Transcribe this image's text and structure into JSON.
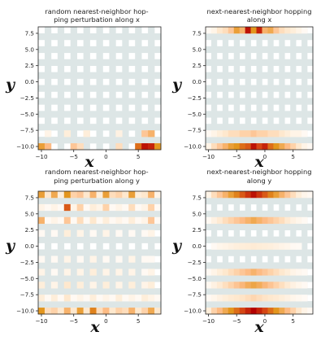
{
  "chart_data": [
    {
      "type": "heatmap",
      "title_lines": [
        "random nearest-neighbor hop-",
        "ping perturbation along x"
      ],
      "xlabel": "x",
      "ylabel": "y",
      "xlim": [
        -10.5,
        8.5
      ],
      "ylim": [
        -10.5,
        8.5
      ],
      "xticks": [
        "−10",
        "−5",
        "0",
        "5"
      ],
      "yticks": [
        "7.5",
        "5.0",
        "2.5",
        "0.0",
        "−2.5",
        "−5.0",
        "−7.5",
        "−10.0"
      ],
      "highlights": [
        {
          "x": -10,
          "y": -10,
          "v": 0.55
        },
        {
          "x": -9,
          "y": -10,
          "v": 0.4
        },
        {
          "x": -5,
          "y": -10,
          "v": 0.35
        },
        {
          "x": 5,
          "y": -10,
          "v": 0.7
        },
        {
          "x": 6,
          "y": -10,
          "v": 0.95
        },
        {
          "x": 7,
          "y": -10,
          "v": 0.9
        },
        {
          "x": 8,
          "y": -10,
          "v": 0.6
        },
        {
          "x": -4,
          "y": -10,
          "v": 0.25
        },
        {
          "x": 2,
          "y": -10,
          "v": 0.25
        },
        {
          "x": 6,
          "y": -8,
          "v": 0.35
        },
        {
          "x": 7,
          "y": -8,
          "v": 0.45
        },
        {
          "x": -6,
          "y": -8,
          "v": 0.15
        },
        {
          "x": -3,
          "y": -8,
          "v": 0.15
        },
        {
          "x": 2,
          "y": -8,
          "v": 0.12
        },
        {
          "x": -9,
          "y": -8,
          "v": 0.1
        }
      ]
    },
    {
      "type": "heatmap",
      "title_lines": [
        "next-nearest-neighbor hopping",
        "along x"
      ],
      "xlabel": "x",
      "ylabel": "y",
      "xlim": [
        -10.5,
        8.5
      ],
      "ylim": [
        -10.5,
        8.5
      ],
      "xticks": [
        "−10",
        "−5",
        "0",
        "5"
      ],
      "yticks": [
        "7.5",
        "5.0",
        "2.5",
        "0.0",
        "−2.5",
        "−5.0",
        "−7.5",
        "−10.0"
      ],
      "rows": [
        {
          "y": 8,
          "values": [
            0.05,
            0.1,
            0.2,
            0.25,
            0.35,
            0.55,
            0.45,
            0.95,
            0.6,
            0.9,
            0.45,
            0.5,
            0.35,
            0.25,
            0.2,
            0.15,
            0.1,
            0.05,
            0.03
          ]
        },
        {
          "y": -8,
          "values": [
            0.05,
            0.1,
            0.15,
            0.2,
            0.25,
            0.25,
            0.3,
            0.3,
            0.35,
            0.3,
            0.3,
            0.25,
            0.25,
            0.2,
            0.15,
            0.1,
            0.1,
            0.05,
            0.03
          ]
        },
        {
          "y": -10,
          "values": [
            0.1,
            0.25,
            0.35,
            0.45,
            0.55,
            0.6,
            0.7,
            0.75,
            0.95,
            0.8,
            0.9,
            0.7,
            0.6,
            0.5,
            0.4,
            0.3,
            0.2,
            0.1,
            0.05
          ]
        }
      ]
    },
    {
      "type": "heatmap",
      "title_lines": [
        "random nearest-neighbor hop-",
        "ping perturbation along y"
      ],
      "xlabel": "x",
      "ylabel": "y",
      "xlim": [
        -10.5,
        8.5
      ],
      "ylim": [
        -10.5,
        8.5
      ],
      "xticks": [
        "−10",
        "−5",
        "0",
        "5"
      ],
      "yticks": [
        "7.5",
        "5.0",
        "2.5",
        "0.0",
        "−2.5",
        "−5.0",
        "−7.5",
        "−10.0"
      ],
      "rows": [
        {
          "y": 8,
          "values": [
            0.55,
            0.2,
            0.5,
            0.15,
            0.6,
            0.3,
            0.35,
            0.2,
            0.45,
            0.15,
            0.55,
            0.25,
            0.3,
            0.2,
            0.55,
            0.15,
            0.2,
            0.45,
            0.1
          ]
        },
        {
          "y": 6,
          "values": [
            0.1,
            0.05,
            0.1,
            0.05,
            0.75,
            0.1,
            0.3,
            0.05,
            0.15,
            0.1,
            0.3,
            0.05,
            0.1,
            0.05,
            0.25,
            0.05,
            0.1,
            0.3,
            0.05
          ]
        },
        {
          "y": 4,
          "values": [
            0.45,
            0.05,
            0.1,
            0.05,
            0.35,
            0.05,
            0.25,
            0.05,
            0.2,
            0.05,
            0.15,
            0.05,
            0.1,
            0.05,
            0.15,
            0.05,
            0.1,
            0.35,
            0.05
          ]
        },
        {
          "y": 2,
          "values": [
            0.05,
            0.03,
            0.05,
            0.03,
            0.15,
            0.03,
            0.1,
            0.03,
            0.05,
            0.03,
            0.1,
            0.03,
            0.05,
            0.03,
            0.05,
            0.03,
            0.05,
            0.1,
            0.03
          ]
        },
        {
          "y": -2,
          "values": [
            0.05,
            0.03,
            0.05,
            0.03,
            0.1,
            0.03,
            0.05,
            0.03,
            0.1,
            0.03,
            0.05,
            0.03,
            0.05,
            0.03,
            0.1,
            0.03,
            0.05,
            0.05,
            0.03
          ]
        },
        {
          "y": -4,
          "values": [
            0.1,
            0.03,
            0.05,
            0.03,
            0.1,
            0.03,
            0.1,
            0.03,
            0.15,
            0.03,
            0.1,
            0.03,
            0.1,
            0.03,
            0.1,
            0.03,
            0.05,
            0.1,
            0.03
          ]
        },
        {
          "y": -6,
          "values": [
            0.15,
            0.03,
            0.1,
            0.03,
            0.2,
            0.03,
            0.15,
            0.03,
            0.1,
            0.03,
            0.15,
            0.03,
            0.1,
            0.03,
            0.15,
            0.03,
            0.1,
            0.15,
            0.03
          ]
        },
        {
          "y": -8,
          "values": [
            0.15,
            0.05,
            0.15,
            0.05,
            0.2,
            0.05,
            0.1,
            0.05,
            0.15,
            0.05,
            0.1,
            0.05,
            0.15,
            0.05,
            0.1,
            0.05,
            0.15,
            0.1,
            0.05
          ]
        },
        {
          "y": -10,
          "values": [
            0.6,
            0.25,
            0.3,
            0.2,
            0.45,
            0.2,
            0.55,
            0.2,
            0.65,
            0.25,
            0.4,
            0.2,
            0.3,
            0.25,
            0.45,
            0.2,
            0.3,
            0.5,
            0.2
          ]
        }
      ]
    },
    {
      "type": "heatmap",
      "title_lines": [
        "next-nearest-neighbor hopping",
        "along y"
      ],
      "xlabel": "x",
      "ylabel": "y",
      "xlim": [
        -10.5,
        8.5
      ],
      "ylim": [
        -10.5,
        8.5
      ],
      "xticks": [
        "−10",
        "−5",
        "0",
        "5"
      ],
      "yticks": [
        "7.5",
        "5.0",
        "2.5",
        "0.0",
        "−2.5",
        "−5.0",
        "−7.5",
        "−10.0"
      ],
      "rows": [
        {
          "y": 8,
          "values": [
            0.1,
            0.25,
            0.35,
            0.45,
            0.55,
            0.65,
            0.75,
            0.85,
            0.95,
            0.85,
            0.75,
            0.65,
            0.55,
            0.45,
            0.35,
            0.25,
            0.15,
            0.08,
            0.05
          ]
        },
        {
          "y": 4,
          "values": [
            0.05,
            0.12,
            0.18,
            0.25,
            0.3,
            0.35,
            0.4,
            0.45,
            0.5,
            0.45,
            0.4,
            0.35,
            0.3,
            0.25,
            0.18,
            0.12,
            0.08,
            0.05,
            0.03
          ]
        },
        {
          "y": 0,
          "values": [
            0.03,
            0.05,
            0.08,
            0.1,
            0.12,
            0.14,
            0.15,
            0.16,
            0.17,
            0.16,
            0.15,
            0.14,
            0.12,
            0.1,
            0.08,
            0.05,
            0.04,
            0.03,
            0.02
          ]
        },
        {
          "y": -4,
          "values": [
            0.05,
            0.1,
            0.15,
            0.2,
            0.25,
            0.3,
            0.35,
            0.4,
            0.45,
            0.4,
            0.35,
            0.3,
            0.25,
            0.2,
            0.15,
            0.1,
            0.07,
            0.05,
            0.03
          ]
        },
        {
          "y": -6,
          "values": [
            0.06,
            0.12,
            0.18,
            0.24,
            0.3,
            0.36,
            0.42,
            0.48,
            0.52,
            0.48,
            0.42,
            0.36,
            0.3,
            0.24,
            0.18,
            0.12,
            0.08,
            0.05,
            0.03
          ]
        },
        {
          "y": -8,
          "values": [
            0.05,
            0.08,
            0.12,
            0.15,
            0.18,
            0.2,
            0.22,
            0.25,
            0.28,
            0.25,
            0.22,
            0.2,
            0.18,
            0.15,
            0.12,
            0.08,
            0.06,
            0.04,
            0.03
          ]
        },
        {
          "y": -10,
          "values": [
            0.15,
            0.3,
            0.4,
            0.5,
            0.6,
            0.7,
            0.8,
            0.9,
            1.0,
            0.9,
            0.8,
            0.7,
            0.6,
            0.5,
            0.4,
            0.3,
            0.2,
            0.1,
            0.05
          ]
        }
      ]
    }
  ]
}
